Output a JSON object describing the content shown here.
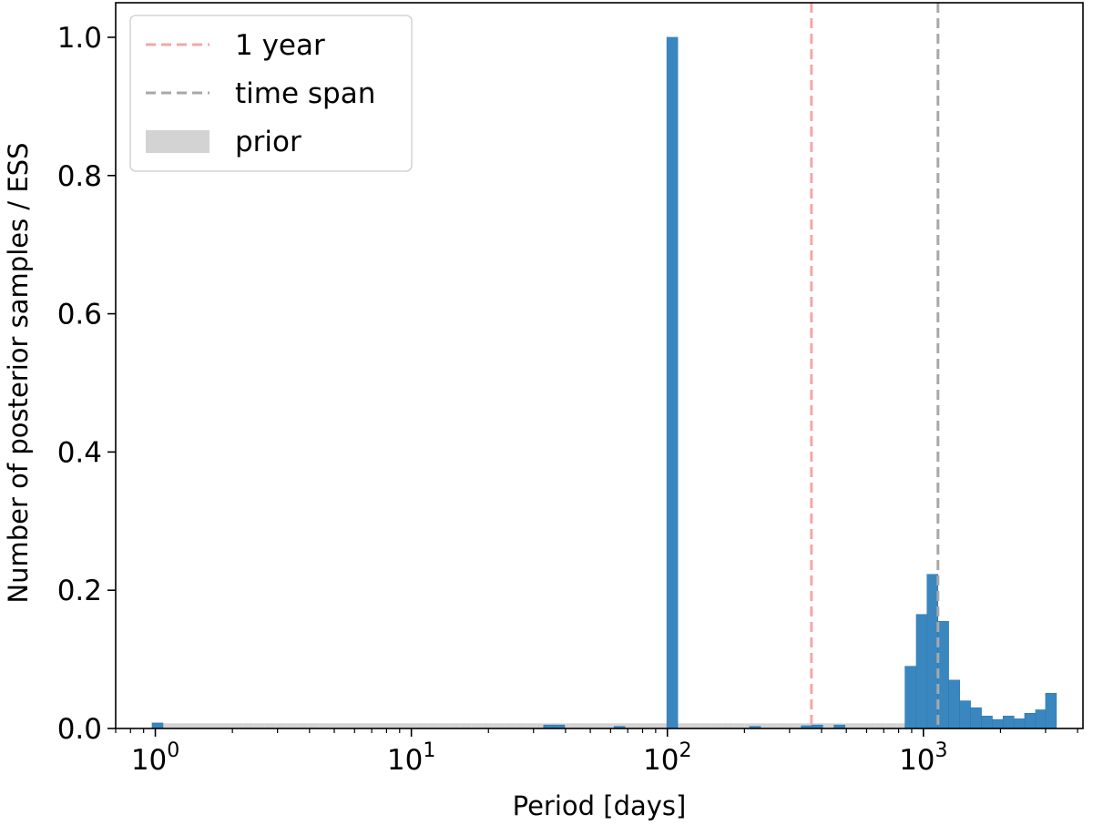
{
  "chart_data": {
    "type": "bar",
    "title": "",
    "xlabel": "Period [days]",
    "ylabel": "Number of posterior samples / ESS",
    "xscale": "log",
    "xlim": [
      0.7,
      4200
    ],
    "ylim": [
      0,
      1.05
    ],
    "grid": false,
    "legend_placement": "top-left",
    "log_bin_width": 0.0426,
    "x_ticks": [
      {
        "value": 1,
        "base": "10",
        "exp": "0"
      },
      {
        "value": 10,
        "base": "10",
        "exp": "1"
      },
      {
        "value": 100,
        "base": "10",
        "exp": "2"
      },
      {
        "value": 1000,
        "base": "10",
        "exp": "3"
      }
    ],
    "y_ticks": [
      {
        "value": 0.0,
        "label": "0.0"
      },
      {
        "value": 0.2,
        "label": "0.2"
      },
      {
        "value": 0.4,
        "label": "0.4"
      },
      {
        "value": 0.6,
        "label": "0.6"
      },
      {
        "value": 0.8,
        "label": "0.8"
      },
      {
        "value": 1.0,
        "label": "1.0"
      }
    ],
    "prior": {
      "name": "prior",
      "color": "#d3d3d3",
      "x_range": [
        1,
        3000
      ],
      "value": 0.0075
    },
    "posterior": {
      "color": "#3a87c0",
      "edge_color": "#2f78b0",
      "bins": [
        {
          "x": 1.02,
          "y": 0.008
        },
        {
          "x": 34.5,
          "y": 0.005
        },
        {
          "x": 37.8,
          "y": 0.005
        },
        {
          "x": 65.0,
          "y": 0.003
        },
        {
          "x": 104.5,
          "y": 1.0
        },
        {
          "x": 220.0,
          "y": 0.003
        },
        {
          "x": 350.0,
          "y": 0.004
        },
        {
          "x": 385.0,
          "y": 0.005
        },
        {
          "x": 470.0,
          "y": 0.005
        },
        {
          "x": 890.0,
          "y": 0.09
        },
        {
          "x": 985.0,
          "y": 0.165
        },
        {
          "x": 1085.0,
          "y": 0.223
        },
        {
          "x": 1195.0,
          "y": 0.155
        },
        {
          "x": 1320.0,
          "y": 0.07
        },
        {
          "x": 1455.0,
          "y": 0.04
        },
        {
          "x": 1605.0,
          "y": 0.03
        },
        {
          "x": 1770.0,
          "y": 0.018
        },
        {
          "x": 1950.0,
          "y": 0.013
        },
        {
          "x": 2150.0,
          "y": 0.018
        },
        {
          "x": 2370.0,
          "y": 0.014
        },
        {
          "x": 2610.0,
          "y": 0.022
        },
        {
          "x": 2880.0,
          "y": 0.027
        },
        {
          "x": 3150.0,
          "y": 0.051
        }
      ]
    },
    "vlines": [
      {
        "name": "1 year",
        "x": 365.25,
        "color": "#f4a7a7"
      },
      {
        "name": "time span",
        "x": 1140,
        "color": "#a8a8a8"
      }
    ]
  }
}
